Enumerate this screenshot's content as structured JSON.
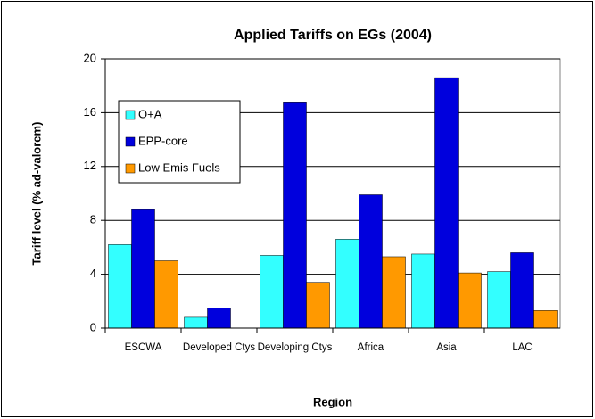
{
  "chart_data": {
    "type": "bar",
    "title": "Applied Tariffs on EGs (2004)",
    "x_label": "Region",
    "y_label": "Tariff level (% ad-valorem)",
    "categories": [
      "ESCWA",
      "Developed Ctys",
      "Developing Ctys",
      "Africa",
      "Asia",
      "LAC"
    ],
    "series": [
      {
        "name": "O+A",
        "color": "#33ffff",
        "values": [
          6.2,
          0.8,
          5.4,
          6.6,
          5.5,
          4.2
        ]
      },
      {
        "name": "EPP-core",
        "color": "#0000dd",
        "values": [
          8.8,
          1.5,
          16.8,
          9.9,
          18.6,
          5.6
        ]
      },
      {
        "name": "Low Emis Fuels",
        "color": "#ff9900",
        "values": [
          5.0,
          0,
          3.4,
          5.3,
          4.1,
          1.3
        ]
      }
    ],
    "ylim": [
      0,
      20
    ],
    "yticks": [
      0,
      4,
      8,
      12,
      16,
      20
    ],
    "grid": true,
    "legend": "upper left"
  }
}
